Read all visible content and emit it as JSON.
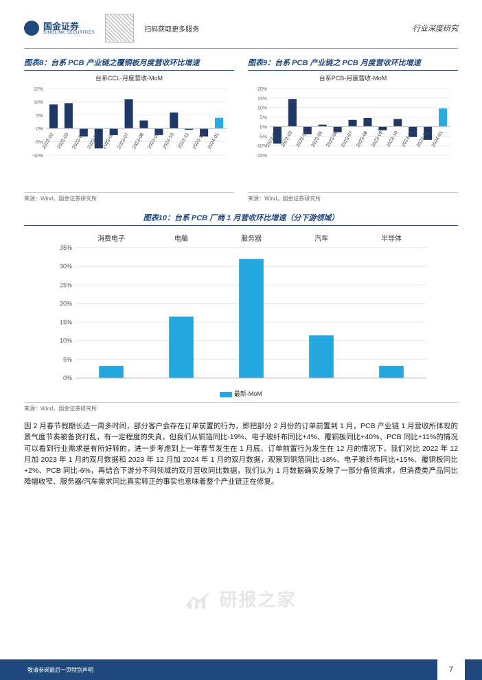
{
  "header": {
    "logo_text": "国金证券",
    "logo_sub": "SINOLINK SECURITIES",
    "scan_text": "扫码获取更多服务",
    "right_text": "行业深度研究"
  },
  "chart8": {
    "title": "图表8：台系 PCB 产业链之覆铜板月度营收环比增速",
    "subtitle": "台系CCL-月度营收-MoM",
    "type": "bar",
    "categories": [
      "2023-02",
      "2023-03",
      "2023-04",
      "2023-05",
      "2023-06",
      "2023-07",
      "2023-08",
      "2023-09",
      "2023-10",
      "2023-11",
      "2023-12",
      "2024-01"
    ],
    "values": [
      9.0,
      9.5,
      -3.0,
      -7.5,
      -2.5,
      11.0,
      3.0,
      -2.5,
      6.0,
      -0.5,
      -3.0,
      4.0
    ],
    "bar_colors": [
      "#1f3864",
      "#1f3864",
      "#1f3864",
      "#1f3864",
      "#1f3864",
      "#1f3864",
      "#1f3864",
      "#1f3864",
      "#1f3864",
      "#1f3864",
      "#1f3864",
      "#29abe2"
    ],
    "ylim": [
      -10,
      15
    ],
    "yticks": [
      -10,
      -5,
      0,
      5,
      10,
      15
    ],
    "ytick_labels": [
      "-10%",
      "-5%",
      "0%",
      "5%",
      "10%",
      "15%"
    ],
    "grid_color": "#d9d9d9",
    "axis_color": "#bfbfbf",
    "background_color": "#ffffff",
    "label_fontsize": 7,
    "source": "来源：Wind，国金证券研究所"
  },
  "chart9": {
    "title": "图表9：台系 PCB 产业链之 PCB 月度营收环比增速",
    "subtitle": "台系PCB-月度营收-MoM",
    "type": "bar",
    "categories": [
      "2023-02",
      "2023-03",
      "2023-04",
      "2023-05",
      "2023-06",
      "2023-07",
      "2023-08",
      "2023-09",
      "2023-10",
      "2023-11",
      "2023-12",
      "2024-01"
    ],
    "values": [
      -9.0,
      14.5,
      -4.0,
      1.0,
      -3.0,
      3.5,
      4.5,
      -2.0,
      4.0,
      -5.5,
      -7.0,
      9.5
    ],
    "bar_colors": [
      "#1f3864",
      "#1f3864",
      "#1f3864",
      "#1f3864",
      "#1f3864",
      "#1f3864",
      "#1f3864",
      "#1f3864",
      "#1f3864",
      "#1f3864",
      "#1f3864",
      "#29abe2"
    ],
    "ylim": [
      -15,
      20
    ],
    "yticks": [
      -15,
      -10,
      -5,
      0,
      5,
      10,
      15,
      20
    ],
    "ytick_labels": [
      "-15%",
      "-10%",
      "-5%",
      "0%",
      "5%",
      "10%",
      "15%",
      "20%"
    ],
    "grid_color": "#d9d9d9",
    "axis_color": "#bfbfbf",
    "background_color": "#ffffff",
    "label_fontsize": 7,
    "source": "来源：Wind，国金证券研究所"
  },
  "chart10": {
    "title": "图表10：台系 PCB 厂商 1 月营收环比增速（分下游领域）",
    "type": "bar",
    "categories": [
      "消费电子",
      "电脑",
      "服务器",
      "汽车",
      "半导体"
    ],
    "values": [
      3.3,
      16.5,
      32.0,
      11.5,
      3.3
    ],
    "bar_color": "#24a7df",
    "ylim": [
      0,
      35
    ],
    "yticks": [
      0,
      5,
      10,
      15,
      20,
      25,
      30,
      35
    ],
    "ytick_labels": [
      "0%",
      "5%",
      "10%",
      "15%",
      "20%",
      "25%",
      "30%",
      "35%"
    ],
    "grid_color": "#d9d9d9",
    "axis_color": "#bfbfbf",
    "background_color": "#ffffff",
    "label_fontsize": 10,
    "legend_label": "最新-MoM",
    "source": "来源：Wind，国金证券研究所"
  },
  "body_text": "因 2 月春节假期长达一周多时间，部分客户会存在订单前置的行为，即把部分 2 月份的订单前置到 1 月，PCB 产业链 1 月营收所体现的景气度节奏被备货打乱，有一定程度的失真，但我们从铜箔同比-19%、电子玻纤布同比+4%、覆铜板同比+40%、PCB 同比+11%的情况可以看到行业需求是有所好转的，进一步考虑到上一年春节发生在 1 月底、订单前置行为发生在 12 月的情况下，我们对比 2022 年 12 月加 2023 年 1 月的双月数据和 2023 年 12 月加 2024 年 1 月的双月数据，观察到铜箔同比-18%、电子玻纤布同比+15%、覆铜板同比+2%、PCB 同比-6%，再结合下游分不同领域的双月营收同比数据，我们认为 1 月数据确实反映了一部分备货需求，但消费类产品同比降幅收窄、服务器/汽车需求同比真实转正的事实也意味着整个产业链正在修复。",
  "watermark": "研报之家",
  "footer": {
    "text": "敬请参阅最后一页特别声明",
    "page": "7"
  }
}
